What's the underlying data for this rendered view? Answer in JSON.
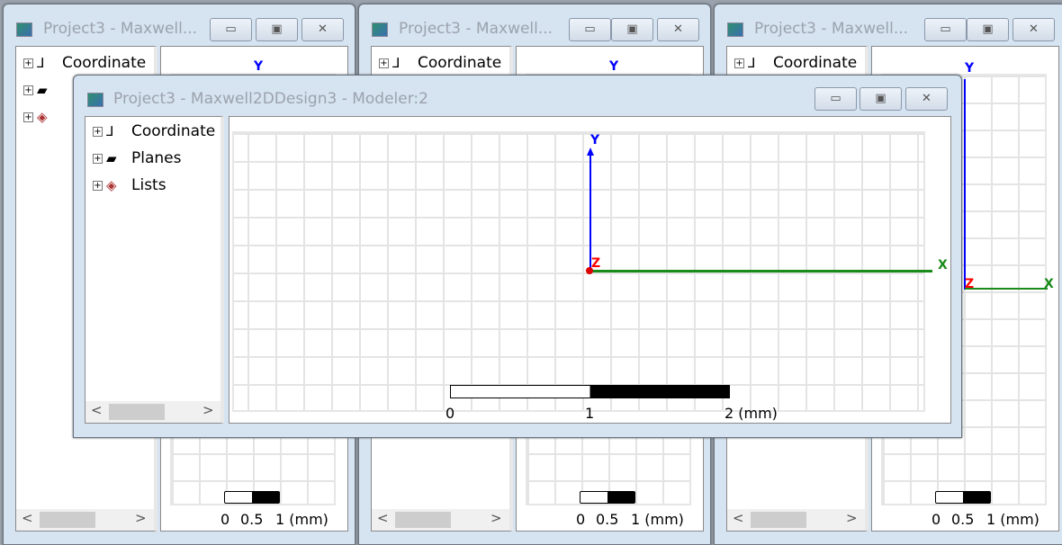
{
  "back_windows": [
    {
      "title": "Project3 - Maxwell...",
      "tree": [
        "Coordinate",
        "",
        " "
      ],
      "scale": [
        "0",
        "0.5",
        "1 (mm)"
      ]
    },
    {
      "title": "Project3 - Maxwell...",
      "tree": [
        "Coordinate"
      ],
      "scale": [
        "0",
        "0.5",
        "1 (mm)"
      ]
    },
    {
      "title": "Project3 - Maxwell...",
      "tree": [
        "Coordinate"
      ],
      "scale": [
        "0",
        "0.5",
        "1 (mm)"
      ]
    }
  ],
  "front_window": {
    "title": "Project3 - Maxwell2DDesign3 - Modeler:2",
    "tree": [
      "Coordinate",
      "Planes",
      "Lists"
    ],
    "scale": [
      "0",
      "1",
      "2 (mm)"
    ]
  },
  "buttons": {
    "minimize": "▭",
    "maximize": "▣",
    "close": "✕"
  },
  "axes": {
    "x": "X",
    "y": "Y",
    "z": "Z"
  },
  "colors": {
    "x_axis": "#1a8a1a",
    "y_axis": "#0000ff",
    "z_axis": "#ff0000"
  }
}
